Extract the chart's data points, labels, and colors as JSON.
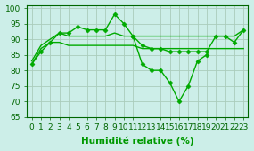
{
  "x": [
    0,
    1,
    2,
    3,
    4,
    5,
    6,
    7,
    8,
    9,
    10,
    11,
    12,
    13,
    14,
    15,
    16,
    17,
    18,
    19,
    20,
    21,
    22,
    23
  ],
  "series": [
    {
      "name": "top_with_markers",
      "y": [
        82,
        86,
        89,
        92,
        92,
        94,
        93,
        93,
        93,
        98,
        95,
        91,
        88,
        87,
        87,
        86,
        86,
        86,
        86,
        86,
        91,
        91,
        89,
        93
      ],
      "color": "#00aa00",
      "marker": "D",
      "markersize": 2.5,
      "linewidth": 1.0
    },
    {
      "name": "dip_line",
      "y": [
        null,
        null,
        null,
        null,
        null,
        null,
        null,
        null,
        null,
        null,
        null,
        91,
        82,
        80,
        80,
        76,
        70,
        75,
        83,
        85,
        null,
        null,
        null,
        null
      ],
      "color": "#00aa00",
      "marker": "D",
      "markersize": 2.5,
      "linewidth": 1.0
    },
    {
      "name": "smooth_upper",
      "y": [
        83,
        88,
        90,
        92,
        91,
        91,
        91,
        91,
        91,
        92,
        91,
        91,
        91,
        91,
        91,
        91,
        91,
        91,
        91,
        91,
        91,
        91,
        91,
        93
      ],
      "color": "#00aa00",
      "marker": null,
      "markersize": 0,
      "linewidth": 1.0
    },
    {
      "name": "smooth_lower",
      "y": [
        82,
        87,
        89,
        89,
        88,
        88,
        88,
        88,
        88,
        88,
        88,
        88,
        87,
        87,
        87,
        87,
        87,
        87,
        87,
        87,
        87,
        87,
        87,
        87
      ],
      "color": "#00aa00",
      "marker": null,
      "markersize": 0,
      "linewidth": 1.0
    }
  ],
  "xlabel": "Humidité relative (%)",
  "xlim": [
    -0.5,
    23.5
  ],
  "ylim": [
    65,
    101
  ],
  "yticks": [
    65,
    70,
    75,
    80,
    85,
    90,
    95,
    100
  ],
  "xticks": [
    0,
    1,
    2,
    3,
    4,
    5,
    6,
    7,
    8,
    9,
    10,
    11,
    12,
    13,
    14,
    15,
    16,
    17,
    18,
    19,
    20,
    21,
    22,
    23
  ],
  "grid_color": "#aaccbb",
  "bg_color": "#cceee8",
  "line_color": "#009900",
  "xlabel_fontsize": 7.5,
  "tick_fontsize": 6.5
}
